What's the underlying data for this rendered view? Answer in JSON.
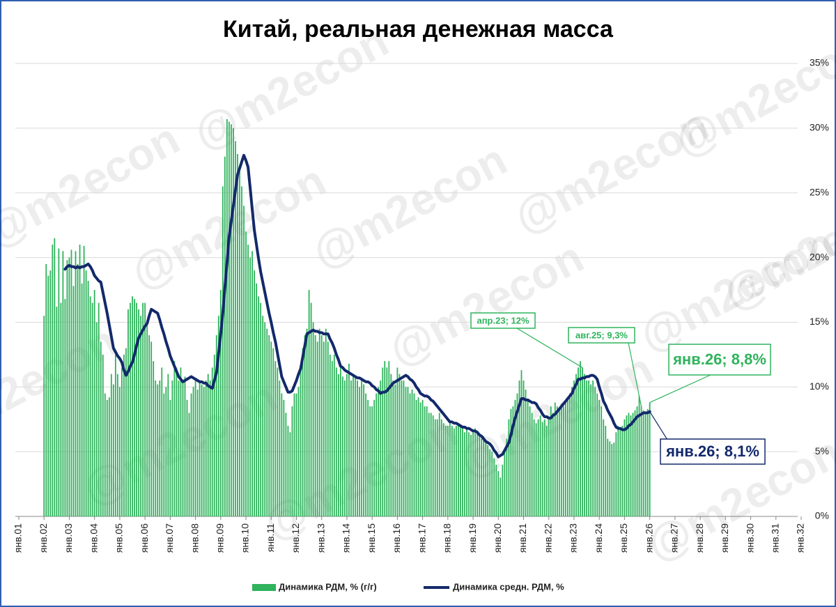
{
  "chart_data": {
    "type": "bar_line",
    "title": "Китай, реальная денежная масса",
    "watermark": "@m2econ",
    "categories": [
      "янв.01",
      null,
      null,
      null,
      null,
      null,
      null,
      null,
      null,
      null,
      null,
      null,
      "янв.02",
      null,
      null,
      null,
      null,
      null,
      null,
      null,
      null,
      null,
      null,
      null,
      "янв.03",
      null,
      null,
      null,
      null,
      null,
      null,
      null,
      null,
      null,
      null,
      null,
      "янв.04",
      null,
      null,
      null,
      null,
      null,
      null,
      null,
      null,
      null,
      null,
      null,
      "янв.05",
      null,
      null,
      null,
      null,
      null,
      null,
      null,
      null,
      null,
      null,
      null,
      "янв.06",
      null,
      null,
      null,
      null,
      null,
      null,
      null,
      null,
      null,
      null,
      null,
      "янв.07",
      null,
      null,
      null,
      null,
      null,
      null,
      null,
      null,
      null,
      null,
      null,
      "янв.08",
      null,
      null,
      null,
      null,
      null,
      null,
      null,
      null,
      null,
      null,
      null,
      "янв.09",
      null,
      null,
      null,
      null,
      null,
      null,
      null,
      null,
      null,
      null,
      null,
      "янв.10",
      null,
      null,
      null,
      null,
      null,
      null,
      null,
      null,
      null,
      null,
      null,
      "янв.11",
      null,
      null,
      null,
      null,
      null,
      null,
      null,
      null,
      null,
      null,
      null,
      "янв.12",
      null,
      null,
      null,
      null,
      null,
      null,
      null,
      null,
      null,
      null,
      null,
      "янв.13",
      null,
      null,
      null,
      null,
      null,
      null,
      null,
      null,
      null,
      null,
      null,
      "янв.14",
      null,
      null,
      null,
      null,
      null,
      null,
      null,
      null,
      null,
      null,
      null,
      "янв.15",
      null,
      null,
      null,
      null,
      null,
      null,
      null,
      null,
      null,
      null,
      null,
      "янв.16",
      null,
      null,
      null,
      null,
      null,
      null,
      null,
      null,
      null,
      null,
      null,
      "янв.17",
      null,
      null,
      null,
      null,
      null,
      null,
      null,
      null,
      null,
      null,
      null,
      "янв.18",
      null,
      null,
      null,
      null,
      null,
      null,
      null,
      null,
      null,
      null,
      null,
      "янв.19",
      null,
      null,
      null,
      null,
      null,
      null,
      null,
      null,
      null,
      null,
      null,
      "янв.20",
      null,
      null,
      null,
      null,
      null,
      null,
      null,
      null,
      null,
      null,
      null,
      "янв.21",
      null,
      null,
      null,
      null,
      null,
      null,
      null,
      null,
      null,
      null,
      null,
      "янв.22",
      null,
      null,
      null,
      null,
      null,
      null,
      null,
      null,
      null,
      null,
      null,
      "янв.23",
      null,
      null,
      null,
      null,
      null,
      null,
      null,
      null,
      null,
      null,
      null,
      "янв.24",
      null,
      null,
      null,
      null,
      null,
      null,
      null,
      null,
      null,
      null,
      null,
      "янв.25",
      null,
      null,
      null,
      null,
      null,
      null,
      null,
      null,
      null,
      null,
      null,
      "янв.26",
      null,
      null,
      null,
      null,
      null,
      null,
      null,
      null,
      null,
      null,
      null,
      "янв.27",
      null,
      null,
      null,
      null,
      null,
      null,
      null,
      null,
      null,
      null,
      null,
      "янв.28",
      null,
      null,
      null,
      null,
      null,
      null,
      null,
      null,
      null,
      null,
      null,
      "янв.29",
      null,
      null,
      null,
      null,
      null,
      null,
      null,
      null,
      null,
      null,
      null,
      "янв.30",
      null,
      null,
      null,
      null,
      null,
      null,
      null,
      null,
      null,
      null,
      null,
      "янв.31",
      null,
      null,
      null,
      null,
      null,
      null,
      null,
      null,
      null,
      null,
      null,
      "янв.32"
    ],
    "series": [
      {
        "name": "Динамика РДМ, % (г/г)",
        "type": "bar",
        "color": "#2fb35c",
        "values": [
          null,
          null,
          null,
          null,
          null,
          null,
          null,
          null,
          null,
          null,
          null,
          null,
          15.5,
          19.5,
          18.6,
          19.0,
          21.0,
          21.5,
          16.2,
          20.7,
          16.5,
          20.5,
          16.8,
          19.8,
          20.0,
          20.6,
          17.8,
          20.5,
          19.5,
          21.0,
          18.0,
          20.9,
          19.0,
          18.2,
          17.0,
          16.5,
          17.5,
          15.0,
          16.5,
          13.5,
          12.5,
          9.5,
          9.0,
          9.2,
          11.0,
          10.2,
          12.5,
          11.0,
          10.0,
          11.5,
          12.5,
          13.0,
          16.0,
          16.5,
          17.0,
          16.8,
          16.5,
          16.0,
          15.5,
          16.5,
          16.5,
          15.0,
          14.0,
          13.5,
          12.0,
          10.5,
          10.2,
          10.5,
          11.5,
          9.5,
          10.0,
          11.0,
          9.0,
          10.5,
          12.0,
          11.5,
          10.5,
          11.5,
          10.5,
          10.8,
          9.0,
          8.0,
          9.5,
          10.0,
          10.5,
          9.8,
          10.5,
          10.2,
          10.0,
          10.5,
          11.0,
          10.5,
          11.5,
          12.5,
          14.0,
          15.5,
          17.5,
          25.5,
          27.8,
          30.7,
          30.5,
          30.3,
          30.0,
          29.0,
          28.0,
          27.0,
          25.5,
          24.0,
          22.0,
          21.0,
          20.0,
          20.5,
          19.0,
          18.0,
          17.0,
          16.5,
          15.5,
          15.0,
          14.5,
          14.0,
          13.5,
          13.0,
          12.0,
          11.5,
          10.5,
          9.5,
          9.0,
          8.0,
          7.0,
          6.5,
          8.5,
          9.5,
          9.5,
          10.0,
          11.5,
          13.0,
          14.0,
          14.5,
          17.5,
          16.5,
          15.0,
          14.0,
          13.5,
          14.5,
          14.0,
          13.5,
          14.5,
          13.5,
          12.5,
          12.0,
          12.5,
          11.5,
          11.0,
          11.5,
          10.8,
          10.5,
          11.0,
          11.8,
          10.5,
          11.0,
          10.8,
          10.5,
          10.0,
          10.5,
          10.2,
          9.5,
          9.0,
          8.5,
          8.5,
          9.0,
          9.5,
          10.0,
          10.5,
          11.5,
          12.0,
          11.5,
          12.0,
          11.0,
          10.5,
          10.2,
          11.5,
          11.0,
          10.5,
          10.5,
          10.0,
          10.0,
          9.5,
          9.8,
          9.5,
          9.0,
          9.2,
          8.8,
          9.0,
          8.5,
          8.5,
          8.0,
          8.0,
          7.8,
          7.5,
          7.5,
          8.0,
          7.5,
          7.2,
          7.0,
          7.0,
          7.2,
          7.0,
          6.8,
          7.0,
          7.2,
          7.0,
          6.8,
          6.5,
          6.7,
          6.5,
          6.3,
          6.5,
          6.8,
          6.5,
          6.3,
          6.0,
          6.2,
          5.8,
          5.5,
          5.2,
          5.0,
          4.5,
          4.0,
          3.5,
          3.0,
          4.0,
          5.0,
          6.0,
          7.5,
          8.3,
          8.5,
          9.0,
          9.5,
          10.5,
          11.3,
          10.5,
          9.8,
          9.0,
          8.5,
          8.0,
          7.5,
          7.2,
          7.5,
          7.8,
          7.3,
          7.5,
          7.0,
          7.5,
          8.5,
          8.0,
          8.8,
          8.5,
          8.3,
          8.7,
          8.5,
          8.8,
          9.0,
          9.5,
          10.0,
          10.5,
          11.0,
          11.5,
          12.0,
          11.5,
          11.0,
          10.5,
          10.5,
          10.2,
          10.5,
          10.0,
          9.5,
          9.0,
          8.5,
          7.5,
          7.0,
          6.0,
          5.8,
          5.6,
          5.7,
          6.5,
          7.0,
          6.8,
          7.0,
          7.5,
          7.8,
          8.0,
          7.8,
          8.0,
          8.2,
          8.5,
          9.3,
          8.5,
          8.2,
          8.0,
          8.3,
          8.8,
          null,
          null,
          null,
          null,
          null,
          null,
          null,
          null,
          null,
          null,
          null,
          null,
          null,
          null,
          null,
          null,
          null,
          null,
          null,
          null,
          null,
          null,
          null,
          null,
          null,
          null,
          null,
          null,
          null,
          null,
          null,
          null,
          null,
          null,
          null,
          null,
          null,
          null,
          null,
          null,
          null,
          null,
          null,
          null,
          null,
          null,
          null,
          null,
          null,
          null,
          null,
          null,
          null,
          null,
          null,
          null,
          null,
          null,
          null,
          null,
          null,
          null,
          null,
          null,
          null,
          null,
          null,
          null,
          null,
          null,
          null,
          null
        ]
      },
      {
        "name": "Динамика средн. РДМ, %",
        "type": "line",
        "color": "#13296b",
        "values": [
          null,
          null,
          null,
          null,
          null,
          null,
          null,
          null,
          null,
          null,
          null,
          null,
          null,
          null,
          null,
          null,
          null,
          null,
          null,
          null,
          null,
          null,
          19.1,
          19.3,
          19.4,
          19.3,
          19.3,
          19.2,
          19.3,
          19.2,
          19.3,
          19.3,
          19.4,
          19.5,
          19.3,
          19.0,
          18.6,
          18.4,
          18.2,
          18.1,
          17.3,
          16.5,
          15.7,
          14.8,
          13.9,
          13.0,
          12.7,
          12.4,
          12.2,
          11.9,
          11.3,
          10.9,
          11.2,
          11.6,
          11.9,
          12.5,
          13.2,
          13.8,
          14.1,
          14.4,
          14.7,
          14.9,
          15.5,
          16.0,
          15.9,
          15.8,
          15.7,
          15.2,
          14.6,
          14.1,
          13.5,
          13.0,
          12.4,
          12.0,
          11.6,
          11.2,
          10.8,
          10.6,
          10.4,
          10.5,
          10.6,
          10.7,
          10.8,
          10.7,
          10.6,
          10.5,
          10.4,
          10.4,
          10.3,
          10.3,
          10.1,
          10.0,
          9.9,
          10.5,
          11.1,
          12.6,
          14.1,
          15.7,
          17.7,
          19.6,
          21.6,
          22.8,
          24.0,
          25.2,
          26.4,
          26.9,
          27.4,
          27.9,
          27.5,
          27.0,
          25.4,
          23.7,
          22.1,
          21.0,
          19.9,
          18.9,
          18.1,
          17.3,
          16.5,
          15.7,
          15.0,
          14.2,
          13.5,
          12.6,
          11.7,
          10.8,
          10.4,
          10.0,
          9.6,
          9.6,
          9.7,
          10.1,
          10.5,
          11.0,
          11.4,
          12.3,
          13.2,
          14.1,
          14.2,
          14.3,
          14.4,
          14.3,
          14.3,
          14.2,
          14.2,
          14.1,
          14.1,
          14.1,
          13.7,
          13.4,
          13.0,
          12.5,
          12.1,
          11.6,
          11.5,
          11.3,
          11.2,
          11.1,
          11.0,
          10.9,
          10.8,
          10.7,
          10.7,
          10.6,
          10.5,
          10.4,
          10.4,
          10.3,
          10.1,
          10.0,
          9.8,
          9.7,
          9.5,
          9.6,
          9.6,
          9.7,
          9.9,
          10.1,
          10.3,
          10.4,
          10.5,
          10.6,
          10.7,
          10.8,
          10.9,
          10.8,
          10.6,
          10.5,
          10.3,
          10.0,
          9.8,
          9.5,
          9.4,
          9.3,
          9.3,
          9.2,
          9.0,
          8.9,
          8.7,
          8.5,
          8.3,
          8.1,
          7.9,
          7.7,
          7.5,
          7.3,
          7.3,
          7.2,
          7.2,
          7.1,
          7.0,
          6.9,
          6.9,
          6.8,
          6.8,
          6.7,
          6.6,
          6.6,
          6.5,
          6.3,
          6.2,
          6.0,
          5.8,
          5.7,
          5.6,
          5.4,
          5.1,
          4.9,
          4.6,
          4.7,
          4.8,
          5.1,
          5.4,
          5.7,
          6.3,
          7.0,
          7.6,
          8.1,
          8.6,
          9.1,
          9.1,
          9.0,
          9.0,
          8.9,
          8.8,
          8.8,
          8.7,
          8.4,
          8.2,
          7.9,
          7.7,
          7.7,
          7.6,
          7.6,
          7.8,
          7.9,
          8.1,
          8.3,
          8.5,
          8.7,
          8.9,
          9.1,
          9.3,
          9.5,
          9.9,
          10.2,
          10.6,
          10.6,
          10.7,
          10.7,
          10.8,
          10.8,
          10.9,
          10.9,
          10.8,
          10.6,
          10.0,
          9.5,
          8.9,
          8.6,
          8.2,
          7.9,
          7.6,
          7.2,
          6.9,
          6.8,
          6.8,
          6.7,
          6.7,
          6.8,
          7.0,
          7.1,
          7.3,
          7.5,
          7.7,
          7.8,
          7.9,
          8.0,
          8.0,
          8.0,
          8.1,
          null,
          null,
          null,
          null,
          null,
          null,
          null,
          null,
          null,
          null,
          null,
          null,
          null,
          null,
          null,
          null,
          null,
          null,
          null,
          null,
          null,
          null,
          null,
          null,
          null,
          null,
          null,
          null,
          null,
          null,
          null,
          null,
          null,
          null,
          null,
          null,
          null,
          null,
          null,
          null,
          null,
          null,
          null,
          null,
          null,
          null,
          null,
          null,
          null,
          null,
          null,
          null,
          null,
          null,
          null,
          null,
          null,
          null,
          null,
          null,
          null,
          null,
          null,
          null,
          null,
          null,
          null,
          null,
          null,
          null,
          null,
          null
        ]
      }
    ],
    "ylim": [
      0,
      35
    ],
    "yticks": [
      {
        "value": 0,
        "label": "0%"
      },
      {
        "value": 5,
        "label": "5%"
      },
      {
        "value": 10,
        "label": "10%"
      },
      {
        "value": 15,
        "label": "15%"
      },
      {
        "value": 20,
        "label": "20%"
      },
      {
        "value": 25,
        "label": "25%"
      },
      {
        "value": 30,
        "label": "30%"
      },
      {
        "value": 35,
        "label": "35%"
      }
    ],
    "y_axis_side": "right",
    "grid": true,
    "legend": "bottom",
    "annotations": [
      "апр.23; 12%",
      "авг.25; 9,3%",
      "янв.26; 8,8%",
      "янв.26; 8,1%"
    ]
  }
}
